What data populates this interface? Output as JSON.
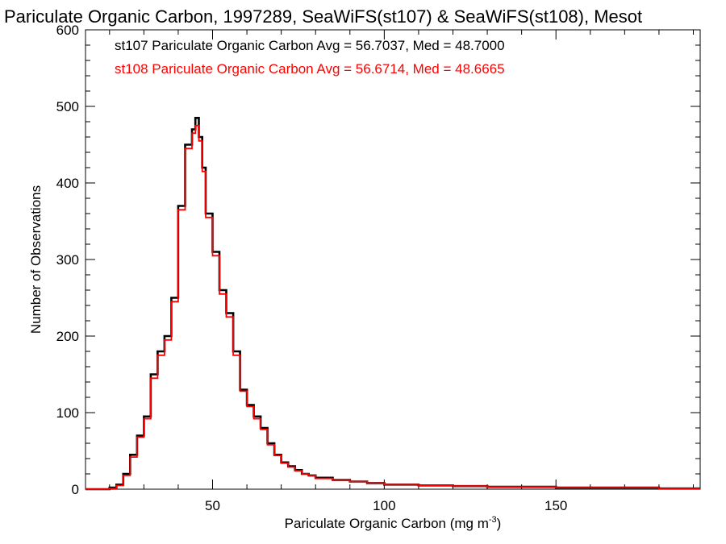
{
  "chart_data": {
    "type": "histogram-step",
    "title": "Pariculate Organic Carbon, 1997289, SeaWiFS(st107) & SeaWiFS(st108), Mesot",
    "xlabel": "Pariculate Organic Carbon (mg m",
    "xlabel_sup": "-3",
    "xlabel_end": ")",
    "ylabel": "Number of Observations",
    "xlim": [
      13,
      192
    ],
    "ylim": [
      0,
      600
    ],
    "xticks": [
      50,
      100,
      150
    ],
    "xtick_labels": [
      "50",
      "100",
      "150"
    ],
    "yticks": [
      0,
      100,
      200,
      300,
      400,
      500,
      600
    ],
    "ytick_labels": [
      "0",
      "100",
      "200",
      "300",
      "400",
      "500",
      "600"
    ],
    "grid": false,
    "series": [
      {
        "name": "st107",
        "color": "#000000",
        "legend": "st107 Pariculate Organic Carbon Avg = 56.7037, Med = 48.7000",
        "x": [
          20,
          22,
          24,
          26,
          28,
          30,
          32,
          34,
          36,
          38,
          40,
          42,
          44,
          45,
          46,
          47,
          48,
          50,
          52,
          54,
          56,
          58,
          60,
          62,
          64,
          66,
          68,
          70,
          72,
          74,
          76,
          78,
          80,
          85,
          90,
          95,
          100,
          110,
          120,
          130,
          140,
          150,
          160,
          170,
          180,
          190
        ],
        "y": [
          0,
          2,
          6,
          20,
          45,
          70,
          95,
          150,
          180,
          200,
          250,
          370,
          450,
          470,
          485,
          460,
          420,
          360,
          310,
          260,
          230,
          180,
          130,
          110,
          95,
          80,
          60,
          45,
          35,
          30,
          25,
          20,
          18,
          15,
          12,
          10,
          8,
          6,
          5,
          4,
          3,
          3,
          2,
          2,
          2,
          1
        ]
      },
      {
        "name": "st108",
        "color": "#ff0000",
        "legend": "st108 Pariculate Organic Carbon Avg = 56.6714, Med = 48.6665",
        "x": [
          20,
          22,
          24,
          26,
          28,
          30,
          32,
          34,
          36,
          38,
          40,
          42,
          44,
          45,
          46,
          47,
          48,
          50,
          52,
          54,
          56,
          58,
          60,
          62,
          64,
          66,
          68,
          70,
          72,
          74,
          76,
          78,
          80,
          85,
          90,
          95,
          100,
          110,
          120,
          130,
          140,
          150,
          160,
          170,
          180,
          190
        ],
        "y": [
          0,
          1,
          5,
          18,
          42,
          68,
          92,
          145,
          175,
          195,
          245,
          365,
          445,
          465,
          475,
          455,
          415,
          355,
          305,
          255,
          225,
          175,
          128,
          108,
          92,
          78,
          58,
          44,
          34,
          29,
          24,
          20,
          18,
          14,
          12,
          10,
          8,
          6,
          5,
          4,
          3,
          3,
          2,
          2,
          2,
          1
        ]
      }
    ]
  }
}
